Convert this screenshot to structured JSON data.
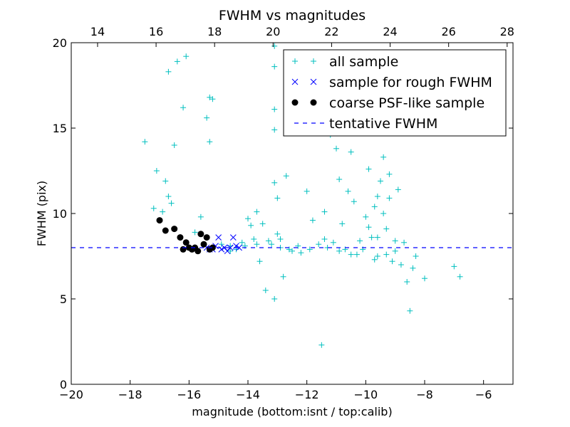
{
  "chart_data": {
    "type": "scatter",
    "title": "FWHM vs magnitudes",
    "xlabel": "magnitude (bottom:isnt / top:calib)",
    "ylabel": "FWHM (pix)",
    "xlim": [
      -20,
      -5
    ],
    "ylim": [
      0,
      20
    ],
    "x_ticks": [
      -20,
      -18,
      -16,
      -14,
      -12,
      -10,
      -8,
      -6
    ],
    "x_tick_labels": [
      "−20",
      "−18",
      "−16",
      "−14",
      "−12",
      "−10",
      "−8",
      "−6"
    ],
    "y_ticks": [
      0,
      5,
      10,
      15,
      20
    ],
    "y_tick_labels": [
      "0",
      "5",
      "10",
      "15",
      "20"
    ],
    "top_axis": {
      "range": [
        13.1,
        28.2
      ],
      "ticks": [
        14,
        16,
        18,
        20,
        22,
        24,
        26,
        28
      ],
      "tick_labels": [
        "14",
        "16",
        "18",
        "20",
        "22",
        "24",
        "26",
        "28"
      ]
    },
    "legend_position": "top-right",
    "series": [
      {
        "name": "all sample",
        "marker": "plus",
        "color": "#00bfbf",
        "points": [
          [
            -17.5,
            14.2
          ],
          [
            -17.2,
            10.3
          ],
          [
            -17.1,
            12.5
          ],
          [
            -16.9,
            10.1
          ],
          [
            -16.8,
            11.9
          ],
          [
            -16.7,
            18.3
          ],
          [
            -16.7,
            11.0
          ],
          [
            -16.6,
            10.6
          ],
          [
            -16.5,
            14.0
          ],
          [
            -16.4,
            18.9
          ],
          [
            -16.2,
            16.2
          ],
          [
            -16.1,
            19.2
          ],
          [
            -15.8,
            8.9
          ],
          [
            -15.6,
            9.8
          ],
          [
            -15.3,
            16.8
          ],
          [
            -15.2,
            16.7
          ],
          [
            -15.4,
            15.6
          ],
          [
            -15.3,
            14.2
          ],
          [
            -14.9,
            8.2
          ],
          [
            -14.6,
            8.1
          ],
          [
            -14.4,
            7.9
          ],
          [
            -14.2,
            8.3
          ],
          [
            -14.0,
            9.7
          ],
          [
            -13.9,
            9.3
          ],
          [
            -13.8,
            8.5
          ],
          [
            -13.7,
            10.1
          ],
          [
            -13.6,
            7.2
          ],
          [
            -13.5,
            9.4
          ],
          [
            -13.3,
            8.4
          ],
          [
            -13.2,
            8.2
          ],
          [
            -13.1,
            19.8
          ],
          [
            -13.1,
            18.6
          ],
          [
            -13.1,
            16.1
          ],
          [
            -13.1,
            14.9
          ],
          [
            -13.1,
            11.8
          ],
          [
            -13.0,
            10.9
          ],
          [
            -13.0,
            8.8
          ],
          [
            -12.9,
            8.0
          ],
          [
            -12.8,
            6.3
          ],
          [
            -12.7,
            12.2
          ],
          [
            -12.5,
            7.8
          ],
          [
            -12.3,
            8.1
          ],
          [
            -12.0,
            11.3
          ],
          [
            -11.8,
            9.6
          ],
          [
            -11.6,
            8.2
          ],
          [
            -11.5,
            2.3
          ],
          [
            -11.4,
            10.1
          ],
          [
            -11.2,
            14.6
          ],
          [
            -11.0,
            13.8
          ],
          [
            -10.9,
            12.0
          ],
          [
            -10.8,
            9.4
          ],
          [
            -10.7,
            7.9
          ],
          [
            -10.6,
            11.3
          ],
          [
            -10.5,
            13.6
          ],
          [
            -10.4,
            10.7
          ],
          [
            -10.3,
            7.6
          ],
          [
            -10.2,
            15.0
          ],
          [
            -10.0,
            9.8
          ],
          [
            -9.9,
            12.6
          ],
          [
            -9.8,
            8.6
          ],
          [
            -9.7,
            10.4
          ],
          [
            -9.6,
            7.5
          ],
          [
            -9.5,
            11.9
          ],
          [
            -9.4,
            13.3
          ],
          [
            -9.3,
            9.1
          ],
          [
            -9.2,
            10.9
          ],
          [
            -9.1,
            7.2
          ],
          [
            -9.0,
            8.4
          ],
          [
            -8.9,
            11.4
          ],
          [
            -8.8,
            7.0
          ],
          [
            -8.7,
            8.3
          ],
          [
            -8.6,
            6.0
          ],
          [
            -8.5,
            4.3
          ],
          [
            -8.4,
            6.8
          ],
          [
            -8.3,
            7.5
          ],
          [
            -8.0,
            6.2
          ],
          [
            -7.0,
            6.9
          ],
          [
            -6.8,
            6.3
          ],
          [
            -13.4,
            5.5
          ],
          [
            -13.1,
            5.0
          ],
          [
            -14.6,
            7.8
          ],
          [
            -14.1,
            8.1
          ],
          [
            -12.6,
            7.9
          ],
          [
            -12.2,
            7.7
          ],
          [
            -11.9,
            7.9
          ],
          [
            -11.3,
            8.0
          ],
          [
            -10.9,
            7.8
          ],
          [
            -10.5,
            7.6
          ],
          [
            -10.1,
            7.9
          ],
          [
            -9.7,
            7.3
          ],
          [
            -9.3,
            7.6
          ],
          [
            -9.0,
            7.8
          ],
          [
            -10.2,
            8.4
          ],
          [
            -9.6,
            8.6
          ],
          [
            -11.4,
            8.5
          ],
          [
            -11.1,
            8.3
          ],
          [
            -12.9,
            8.5
          ],
          [
            -13.7,
            8.2
          ],
          [
            -9.4,
            10.0
          ],
          [
            -9.2,
            12.3
          ],
          [
            -9.6,
            11.0
          ],
          [
            -9.9,
            9.2
          ]
        ]
      },
      {
        "name": "sample for rough FWHM",
        "marker": "x",
        "color": "#0000ff",
        "points": [
          [
            -15.4,
            8.0
          ],
          [
            -15.2,
            7.9
          ],
          [
            -15.1,
            8.1
          ],
          [
            -15.0,
            8.6
          ],
          [
            -14.9,
            7.9
          ],
          [
            -14.8,
            8.0
          ],
          [
            -14.7,
            7.8
          ],
          [
            -14.6,
            8.0
          ],
          [
            -14.5,
            8.6
          ],
          [
            -14.4,
            8.1
          ],
          [
            -14.3,
            8.0
          ],
          [
            -15.3,
            7.9
          ]
        ]
      },
      {
        "name": "coarse PSF-like sample",
        "marker": "circle",
        "color": "#000000",
        "points": [
          [
            -17.0,
            9.6
          ],
          [
            -16.8,
            9.0
          ],
          [
            -16.5,
            9.1
          ],
          [
            -16.3,
            8.6
          ],
          [
            -16.1,
            8.3
          ],
          [
            -16.0,
            8.0
          ],
          [
            -15.9,
            7.9
          ],
          [
            -15.8,
            8.0
          ],
          [
            -15.7,
            7.8
          ],
          [
            -15.6,
            8.8
          ],
          [
            -15.5,
            8.2
          ],
          [
            -15.4,
            8.6
          ],
          [
            -15.3,
            7.9
          ],
          [
            -15.2,
            8.0
          ],
          [
            -16.2,
            7.9
          ]
        ]
      },
      {
        "name": "tentative FWHM",
        "marker": "dashed-line",
        "color": "#0000ff",
        "y": 8.0
      }
    ]
  }
}
